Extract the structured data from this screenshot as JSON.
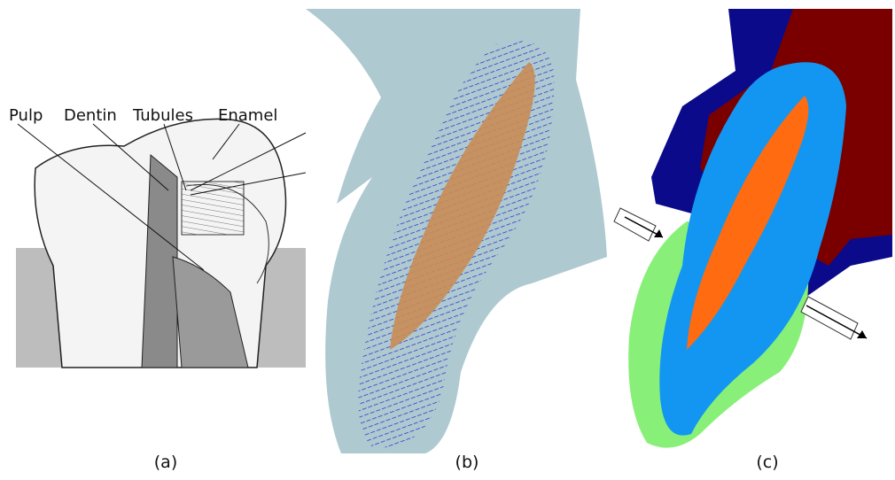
{
  "panel_a": {
    "labels": [
      "Pulp",
      "Dentin",
      "Tubules",
      "Enamel"
    ],
    "caption": "(a)"
  },
  "panel_b": {
    "caption": "(b)"
  },
  "panel_c": {
    "caption": "(c)"
  }
}
